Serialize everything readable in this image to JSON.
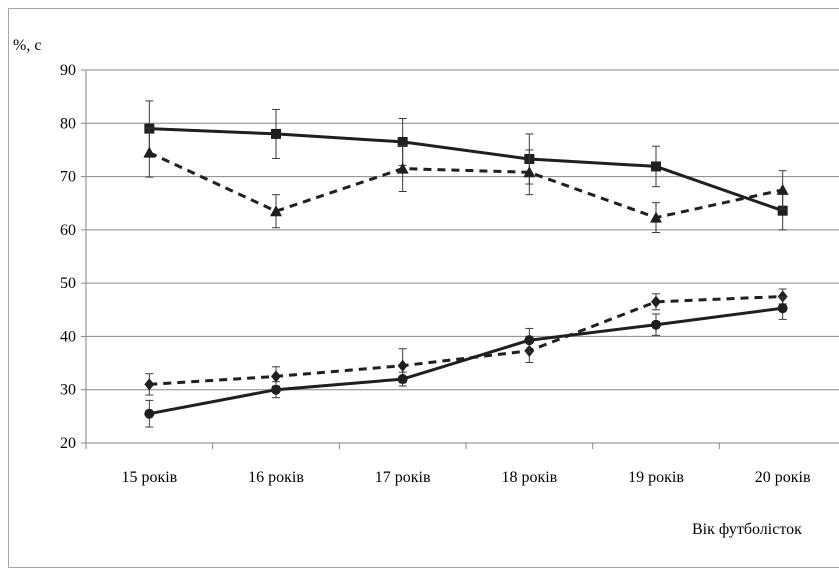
{
  "chart_data": {
    "type": "line",
    "ylabel": "%, с",
    "xlabel": "Вік футболісток",
    "ylim": [
      20,
      90
    ],
    "yticks": [
      20,
      30,
      40,
      50,
      60,
      70,
      80,
      90
    ],
    "categories": [
      "15 років",
      "16 років",
      "17 років",
      "18 років",
      "19 років",
      "20 років"
    ],
    "grid": true,
    "series": [
      {
        "marker": "square",
        "dash": "solid",
        "values": [
          79,
          78,
          76.5,
          73.3,
          71.9,
          63.6
        ],
        "errors": [
          5.2,
          4.6,
          4.4,
          4.7,
          3.8,
          3.6
        ]
      },
      {
        "marker": "triangle",
        "dash": "dashed",
        "values": [
          74.5,
          63.5,
          71.5,
          70.8,
          62.3,
          67.5
        ],
        "errors": [
          4.6,
          3.1,
          4.3,
          4.2,
          2.8,
          3.6
        ]
      },
      {
        "marker": "diamond",
        "dash": "dashed",
        "values": [
          31,
          32.5,
          34.5,
          37.3,
          46.5,
          47.5
        ],
        "errors": [
          2.0,
          1.8,
          3.2,
          2.2,
          1.5,
          1.4
        ]
      },
      {
        "marker": "circle",
        "dash": "solid",
        "values": [
          25.5,
          30,
          32,
          39.3,
          42.2,
          45.3
        ],
        "errors": [
          2.5,
          1.5,
          1.3,
          2.2,
          2.0,
          2.1
        ]
      }
    ]
  }
}
